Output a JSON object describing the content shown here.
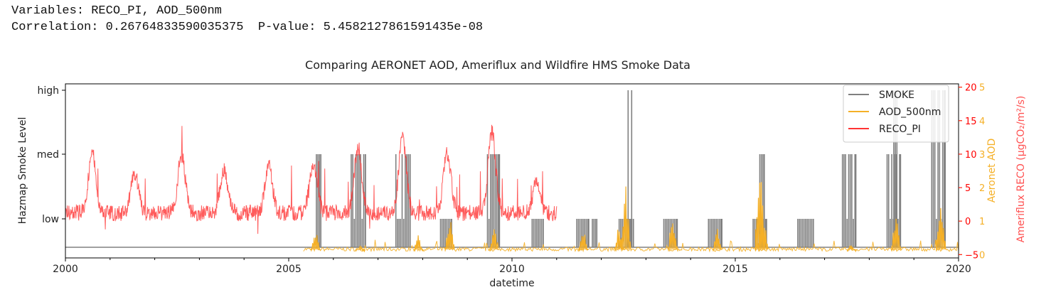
{
  "output": {
    "line1": "Variables: RECO_PI, AOD_500nm",
    "line2": "Correlation: 0.26764833590035375  P-value: 5.4582127861591435e-08"
  },
  "chart_data": {
    "type": "line",
    "title": "Comparing AERONET AOD, Ameriflux and Wildfire HMS Smoke Data",
    "xlabel": "datetime",
    "x_ticks": [
      "2000",
      "2005",
      "2010",
      "2015",
      "2020"
    ],
    "xlim": [
      2000,
      2020
    ],
    "left_axis": {
      "label": "Hazmap Smoke Level",
      "ticks": [
        "low",
        "med",
        "high"
      ]
    },
    "right_axis_aod": {
      "label": "Aeronet AOD",
      "ticks": [
        0,
        1,
        2,
        3,
        4,
        5
      ],
      "ylim": [
        -0.1,
        5.1
      ]
    },
    "right_axis_reco": {
      "label": "Ameriflux RECO (μgCO₂/m²/s)",
      "tick_labels": [
        "−5",
        "0",
        "5",
        "10",
        "15",
        "20"
      ],
      "ylim": [
        -5.5,
        20.5
      ]
    },
    "grid": false,
    "legend_position": "top-right",
    "legend": [
      "SMOKE",
      "AOD_500nm",
      "RECO_PI"
    ],
    "colors": {
      "smoke": "#808080",
      "aod": "#f5b027",
      "reco": "#ff3333",
      "reco_axis": "#ff0000"
    },
    "series": [
      {
        "name": "SMOKE",
        "smoke_episodes": [
          {
            "start": 2005.62,
            "end": 2005.72,
            "level": "med"
          },
          {
            "start": 2006.4,
            "end": 2006.72,
            "level": "med"
          },
          {
            "start": 2007.4,
            "end": 2007.72,
            "level": "med"
          },
          {
            "start": 2008.4,
            "end": 2008.65,
            "level": "low"
          },
          {
            "start": 2009.45,
            "end": 2009.72,
            "level": "med"
          },
          {
            "start": 2010.45,
            "end": 2010.7,
            "level": "low"
          },
          {
            "start": 2011.45,
            "end": 2011.72,
            "level": "low"
          },
          {
            "start": 2011.8,
            "end": 2011.9,
            "level": "low"
          },
          {
            "start": 2012.4,
            "end": 2012.72,
            "level": "low"
          },
          {
            "start": 2012.6,
            "end": 2012.68,
            "level": "high"
          },
          {
            "start": 2013.4,
            "end": 2013.7,
            "level": "low"
          },
          {
            "start": 2014.4,
            "end": 2014.7,
            "level": "low"
          },
          {
            "start": 2015.4,
            "end": 2015.7,
            "level": "low"
          },
          {
            "start": 2015.55,
            "end": 2015.65,
            "level": "med"
          },
          {
            "start": 2016.4,
            "end": 2016.75,
            "level": "low"
          },
          {
            "start": 2017.4,
            "end": 2017.7,
            "level": "med"
          },
          {
            "start": 2018.4,
            "end": 2018.7,
            "level": "med"
          },
          {
            "start": 2018.55,
            "end": 2018.62,
            "level": "high"
          },
          {
            "start": 2019.4,
            "end": 2019.7,
            "level": "high"
          }
        ]
      },
      {
        "name": "AOD_500nm",
        "coverage": [
          2005.33,
          2020.0
        ],
        "baseline": 0.1,
        "peaks": [
          {
            "x": 2005.6,
            "y": 0.8
          },
          {
            "x": 2006.6,
            "y": 0.3
          },
          {
            "x": 2007.9,
            "y": 0.6
          },
          {
            "x": 2008.6,
            "y": 1.3
          },
          {
            "x": 2009.6,
            "y": 0.9
          },
          {
            "x": 2011.6,
            "y": 0.8
          },
          {
            "x": 2012.4,
            "y": 1.0
          },
          {
            "x": 2012.55,
            "y": 2.3
          },
          {
            "x": 2013.6,
            "y": 1.4
          },
          {
            "x": 2014.6,
            "y": 0.9
          },
          {
            "x": 2015.55,
            "y": 3.5
          },
          {
            "x": 2015.62,
            "y": 1.6
          },
          {
            "x": 2017.6,
            "y": 0.4
          },
          {
            "x": 2018.6,
            "y": 1.4
          },
          {
            "x": 2019.6,
            "y": 1.9
          }
        ]
      },
      {
        "name": "RECO_PI",
        "coverage": [
          2000.0,
          2011.0
        ],
        "baseline": 0,
        "seasonal_peaks": [
          {
            "x": 2000.6,
            "y": 10.5
          },
          {
            "x": 2001.55,
            "y": 7.5
          },
          {
            "x": 2002.6,
            "y": 10.0
          },
          {
            "x": 2003.55,
            "y": 8.0
          },
          {
            "x": 2004.55,
            "y": 8.5
          },
          {
            "x": 2005.55,
            "y": 9.0
          },
          {
            "x": 2006.55,
            "y": 11.0
          },
          {
            "x": 2007.55,
            "y": 12.5
          },
          {
            "x": 2008.55,
            "y": 10.5
          },
          {
            "x": 2009.55,
            "y": 13.5
          },
          {
            "x": 2010.55,
            "y": 6.0
          }
        ]
      }
    ]
  }
}
